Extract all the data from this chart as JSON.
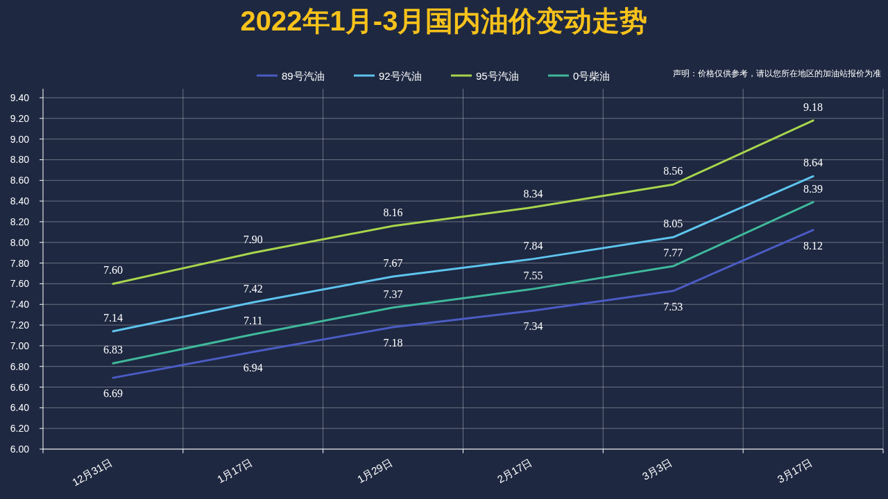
{
  "chart_data": {
    "type": "line",
    "title": "2022年1月-3月国内油价变动走势",
    "annotations": [
      "声明：价格仅供参考，请以您所在地区的加油站报价为准"
    ],
    "categories": [
      "12月31日",
      "1月17日",
      "1月29日",
      "2月17日",
      "3月3日",
      "3月17日"
    ],
    "series": [
      {
        "name": "89号汽油",
        "color": "#4b5cc4",
        "values": [
          6.69,
          6.94,
          7.18,
          7.34,
          7.53,
          8.12
        ],
        "value_labels": [
          "6.69",
          "6.94",
          "7.18",
          "7.34",
          "7.53",
          "8.12"
        ]
      },
      {
        "name": "92号汽油",
        "color": "#5ec4ee",
        "values": [
          7.14,
          7.42,
          7.67,
          7.84,
          8.05,
          8.64
        ],
        "value_labels": [
          "7.14",
          "7.42",
          "7.67",
          "7.84",
          "8.05",
          "8.64"
        ]
      },
      {
        "name": "95号汽油",
        "color": "#a8d64c",
        "values": [
          7.6,
          7.9,
          8.16,
          8.34,
          8.56,
          9.18
        ],
        "value_labels": [
          "7.60",
          "7.90",
          "8.16",
          "8.34",
          "8.56",
          "9.18"
        ]
      },
      {
        "name": "0号柴油",
        "color": "#3fb99b",
        "values": [
          6.83,
          7.11,
          7.37,
          7.55,
          7.77,
          8.39
        ],
        "value_labels": [
          "6.83",
          "7.11",
          "7.37",
          "7.55",
          "7.77",
          "8.39"
        ]
      }
    ],
    "ylim": [
      6,
      9.4
    ],
    "yticks": [
      {
        "value": 6,
        "label": "6.00"
      },
      {
        "value": 6.2,
        "label": "6.20"
      },
      {
        "value": 6.4,
        "label": "6.40"
      },
      {
        "value": 6.6,
        "label": "6.60"
      },
      {
        "value": 6.8,
        "label": "6.80"
      },
      {
        "value": 7,
        "label": "7.00"
      },
      {
        "value": 7.2,
        "label": "7.20"
      },
      {
        "value": 7.4,
        "label": "7.40"
      },
      {
        "value": 7.6,
        "label": "7.60"
      },
      {
        "value": 7.8,
        "label": "7.80"
      },
      {
        "value": 8,
        "label": "8.00"
      },
      {
        "value": 8.2,
        "label": "8.20"
      },
      {
        "value": 8.4,
        "label": "8.40"
      },
      {
        "value": 8.6,
        "label": "8.60"
      },
      {
        "value": 8.8,
        "label": "8.80"
      },
      {
        "value": 9,
        "label": "9.00"
      },
      {
        "value": 9.2,
        "label": "9.20"
      },
      {
        "value": 9.4,
        "label": "9.40"
      }
    ],
    "grid": true,
    "legend": "top",
    "marker": "none",
    "line_style": "solid"
  }
}
